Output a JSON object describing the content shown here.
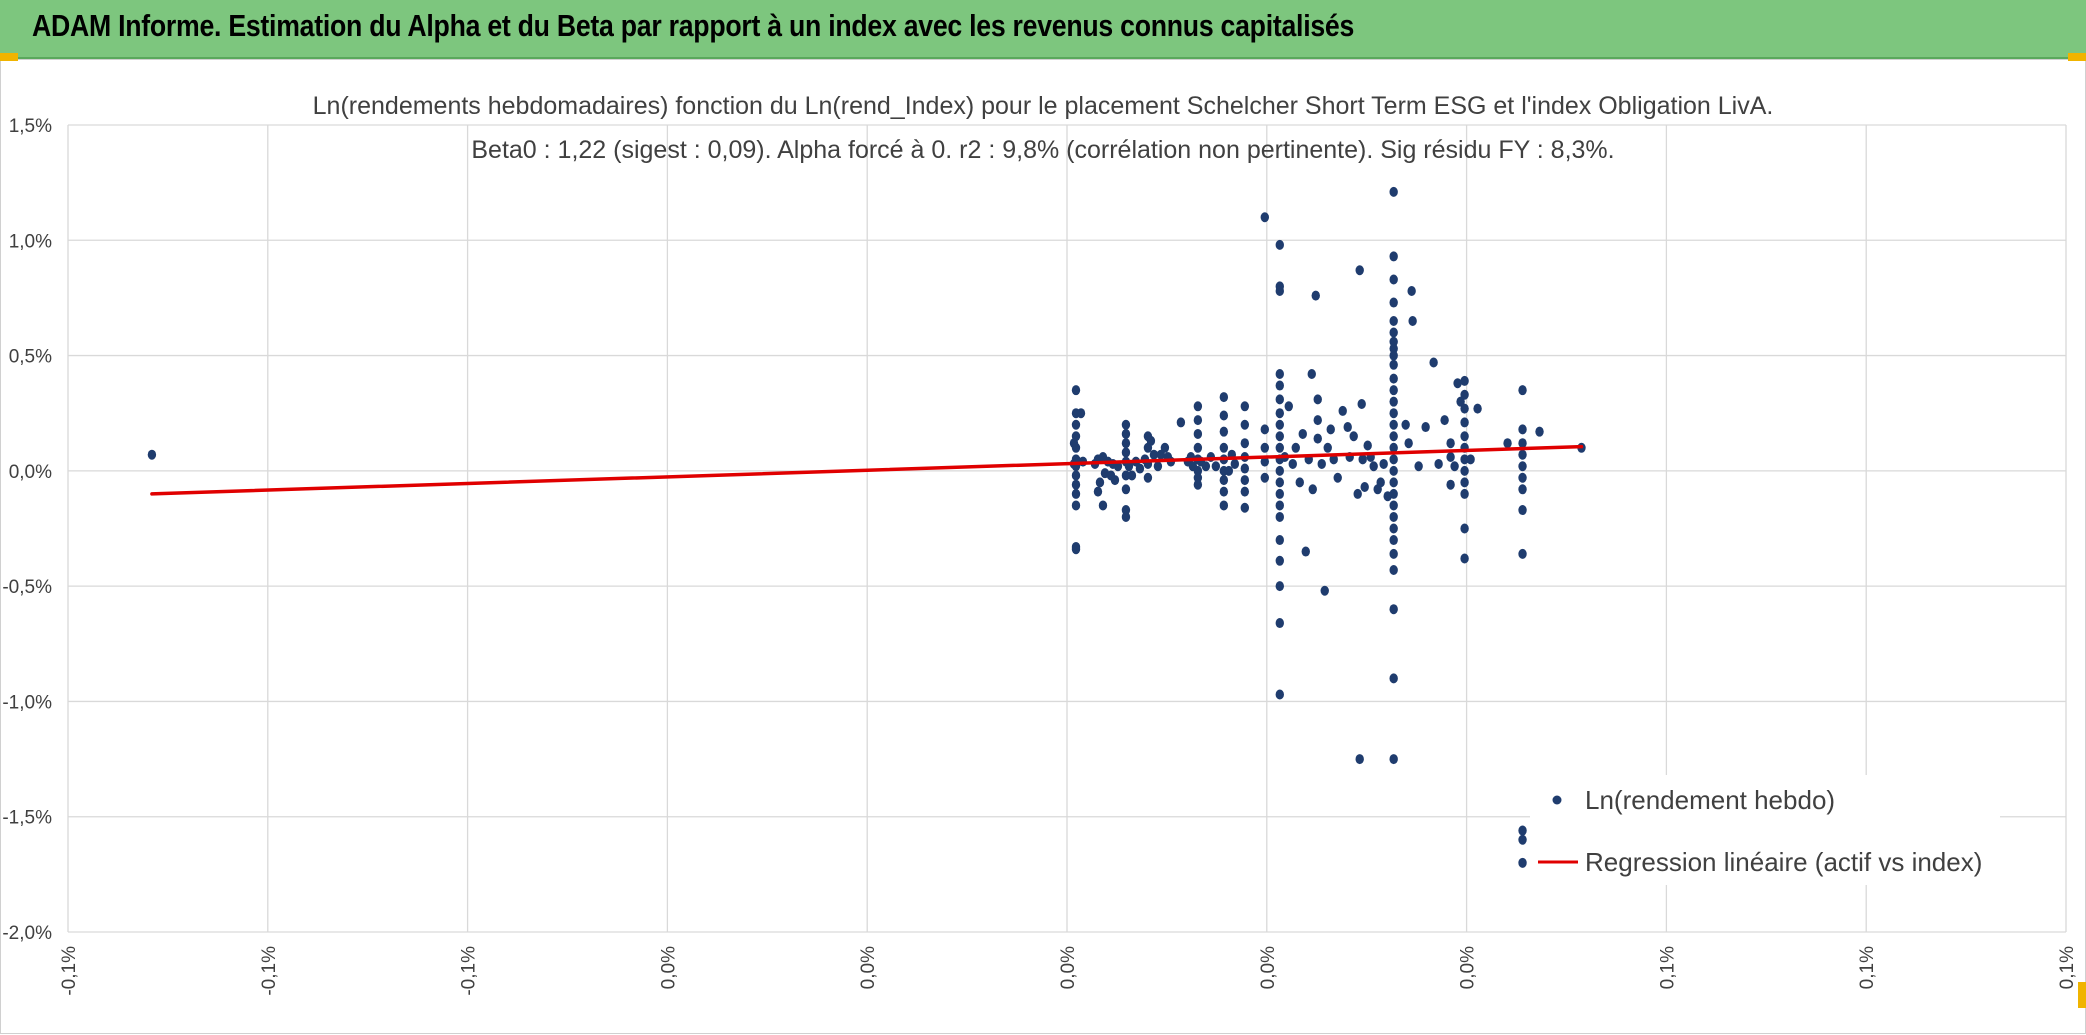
{
  "header": {
    "title": "ADAM Informe. Estimation du Alpha et du Beta par rapport à un index avec les revenus connus capitalisés"
  },
  "colors": {
    "banner": "#7dc67e",
    "points": "#1f3c6e",
    "regression": "#e00000",
    "grid": "#d9d9d9",
    "corner_accent": "#f0b400"
  },
  "chart_data": {
    "type": "scatter",
    "title_line1": "Ln(rendements hebdomadaires) fonction du Ln(rend_Index) pour le placement Schelcher Short Term ESG  et l'index Obligation LivA.",
    "title_line2": "Beta0 : 1,22 (sigest : 0,09). Alpha forcé à 0. r2 : 9,8% (corrélation non pertinente). Sig résidu FY : 8,3%.",
    "xlim": [
      -0.1,
      0.1
    ],
    "ylim": [
      -2.0,
      1.5
    ],
    "grid": true,
    "legend_position": "bottom-right",
    "x_tick_labels": [
      "-0,1%",
      "-0,1%",
      "-0,1%",
      "0,0%",
      "0,0%",
      "0,0%",
      "0,0%",
      "0,0%",
      "0,1%",
      "0,1%",
      "0,1%"
    ],
    "y_tick_labels": [
      "1,5%",
      "1,0%",
      "0,5%",
      "0,0%",
      "-0,5%",
      "-1,0%",
      "-1,5%",
      "-2,0%"
    ],
    "series": [
      {
        "name": "Ln(rendement hebdo)",
        "kind": "scatter",
        "points": [
          [
            -0.0916,
            0.07
          ],
          [
            0.0009,
            0.35
          ],
          [
            0.0009,
            0.25
          ],
          [
            0.0009,
            0.2
          ],
          [
            0.0009,
            0.15
          ],
          [
            0.0009,
            0.1
          ],
          [
            0.0009,
            0.05
          ],
          [
            0.0009,
            0.02
          ],
          [
            0.0009,
            -0.02
          ],
          [
            0.0009,
            -0.06
          ],
          [
            0.0009,
            -0.1
          ],
          [
            0.0009,
            -0.15
          ],
          [
            0.0009,
            -0.33
          ],
          [
            0.0009,
            -0.34
          ],
          [
            0.0007,
            0.12
          ],
          [
            0.0007,
            0.03
          ],
          [
            0.0011,
            0.04
          ],
          [
            0.0014,
            0.25
          ],
          [
            0.0016,
            0.04
          ],
          [
            0.0028,
            0.03
          ],
          [
            0.0031,
            0.05
          ],
          [
            0.0033,
            -0.05
          ],
          [
            0.0036,
            0.06
          ],
          [
            0.0038,
            -0.01
          ],
          [
            0.0041,
            0.04
          ],
          [
            0.0044,
            -0.02
          ],
          [
            0.0046,
            0.03
          ],
          [
            0.0048,
            -0.04
          ],
          [
            0.0036,
            -0.15
          ],
          [
            0.0031,
            -0.09
          ],
          [
            0.0051,
            0.02
          ],
          [
            0.0059,
            0.2
          ],
          [
            0.0059,
            0.16
          ],
          [
            0.0059,
            0.12
          ],
          [
            0.0059,
            0.08
          ],
          [
            0.0059,
            0.04
          ],
          [
            0.0059,
            -0.02
          ],
          [
            0.0059,
            -0.08
          ],
          [
            0.0059,
            -0.17
          ],
          [
            0.0059,
            -0.2
          ],
          [
            0.0062,
            0.02
          ],
          [
            0.0065,
            -0.02
          ],
          [
            0.0069,
            0.04
          ],
          [
            0.0073,
            0.01
          ],
          [
            0.0078,
            0.05
          ],
          [
            0.0081,
            0.15
          ],
          [
            0.0081,
            0.1
          ],
          [
            0.0081,
            0.03
          ],
          [
            0.0081,
            -0.03
          ],
          [
            0.0084,
            0.13
          ],
          [
            0.0087,
            0.07
          ],
          [
            0.0091,
            0.02
          ],
          [
            0.0094,
            0.07
          ],
          [
            0.0098,
            0.1
          ],
          [
            0.0101,
            0.06
          ],
          [
            0.0104,
            0.04
          ],
          [
            0.0114,
            0.21
          ],
          [
            0.0121,
            0.04
          ],
          [
            0.0124,
            0.06
          ],
          [
            0.0126,
            0.02
          ],
          [
            0.0131,
            0.28
          ],
          [
            0.0131,
            0.22
          ],
          [
            0.0131,
            0.16
          ],
          [
            0.0131,
            0.1
          ],
          [
            0.0131,
            0.05
          ],
          [
            0.0131,
            0.0
          ],
          [
            0.0131,
            -0.03
          ],
          [
            0.0131,
            -0.06
          ],
          [
            0.0134,
            0.04
          ],
          [
            0.0139,
            0.02
          ],
          [
            0.0144,
            0.06
          ],
          [
            0.0149,
            0.02
          ],
          [
            0.0157,
            0.32
          ],
          [
            0.0157,
            0.24
          ],
          [
            0.0157,
            0.17
          ],
          [
            0.0157,
            0.1
          ],
          [
            0.0157,
            0.05
          ],
          [
            0.0157,
            0.0
          ],
          [
            0.0157,
            -0.04
          ],
          [
            0.0157,
            -0.09
          ],
          [
            0.0157,
            -0.15
          ],
          [
            0.0162,
            0.0
          ],
          [
            0.0165,
            0.07
          ],
          [
            0.0168,
            0.03
          ],
          [
            0.0178,
            0.28
          ],
          [
            0.0178,
            0.2
          ],
          [
            0.0178,
            0.12
          ],
          [
            0.0178,
            0.06
          ],
          [
            0.0178,
            0.01
          ],
          [
            0.0178,
            -0.04
          ],
          [
            0.0178,
            -0.09
          ],
          [
            0.0178,
            -0.16
          ],
          [
            0.0198,
            1.1
          ],
          [
            0.0198,
            0.18
          ],
          [
            0.0198,
            0.1
          ],
          [
            0.0198,
            0.04
          ],
          [
            0.0198,
            -0.03
          ],
          [
            0.0213,
            0.98
          ],
          [
            0.0213,
            0.8
          ],
          [
            0.0213,
            0.78
          ],
          [
            0.0213,
            0.42
          ],
          [
            0.0213,
            0.37
          ],
          [
            0.0213,
            0.31
          ],
          [
            0.0213,
            0.25
          ],
          [
            0.0213,
            0.2
          ],
          [
            0.0213,
            0.15
          ],
          [
            0.0213,
            0.1
          ],
          [
            0.0213,
            0.05
          ],
          [
            0.0213,
            0.0
          ],
          [
            0.0213,
            -0.05
          ],
          [
            0.0213,
            -0.1
          ],
          [
            0.0213,
            -0.15
          ],
          [
            0.0213,
            -0.2
          ],
          [
            0.0213,
            -0.3
          ],
          [
            0.0213,
            -0.39
          ],
          [
            0.0213,
            -0.5
          ],
          [
            0.0213,
            -0.66
          ],
          [
            0.0213,
            -0.97
          ],
          [
            0.0218,
            0.06
          ],
          [
            0.0222,
            0.28
          ],
          [
            0.0226,
            0.03
          ],
          [
            0.0229,
            0.1
          ],
          [
            0.0233,
            -0.05
          ],
          [
            0.0236,
            0.16
          ],
          [
            0.0239,
            -0.35
          ],
          [
            0.0242,
            0.05
          ],
          [
            0.0245,
            0.42
          ],
          [
            0.0246,
            -0.08
          ],
          [
            0.0249,
            0.76
          ],
          [
            0.0251,
            0.31
          ],
          [
            0.0251,
            0.22
          ],
          [
            0.0251,
            0.14
          ],
          [
            0.0255,
            0.03
          ],
          [
            0.0258,
            -0.52
          ],
          [
            0.0261,
            0.1
          ],
          [
            0.0264,
            0.18
          ],
          [
            0.0267,
            0.05
          ],
          [
            0.0271,
            -0.03
          ],
          [
            0.0276,
            0.26
          ],
          [
            0.0281,
            0.19
          ],
          [
            0.0283,
            0.06
          ],
          [
            0.0287,
            0.15
          ],
          [
            0.0291,
            -0.1
          ],
          [
            0.0293,
            0.87
          ],
          [
            0.0295,
            0.29
          ],
          [
            0.0296,
            0.05
          ],
          [
            0.0298,
            -0.07
          ],
          [
            0.0301,
            0.11
          ],
          [
            0.0304,
            0.06
          ],
          [
            0.0307,
            0.02
          ],
          [
            0.0311,
            -0.08
          ],
          [
            0.0314,
            -0.05
          ],
          [
            0.0317,
            0.03
          ],
          [
            0.0321,
            -0.11
          ],
          [
            0.0293,
            -1.25
          ],
          [
            0.0327,
            1.21
          ],
          [
            0.0327,
            0.93
          ],
          [
            0.0327,
            0.83
          ],
          [
            0.0327,
            0.73
          ],
          [
            0.0327,
            0.65
          ],
          [
            0.0327,
            0.6
          ],
          [
            0.0327,
            0.56
          ],
          [
            0.0327,
            0.53
          ],
          [
            0.0327,
            0.5
          ],
          [
            0.0327,
            0.46
          ],
          [
            0.0327,
            0.4
          ],
          [
            0.0327,
            0.35
          ],
          [
            0.0327,
            0.3
          ],
          [
            0.0327,
            0.25
          ],
          [
            0.0327,
            0.2
          ],
          [
            0.0327,
            0.15
          ],
          [
            0.0327,
            0.1
          ],
          [
            0.0327,
            0.05
          ],
          [
            0.0327,
            0.0
          ],
          [
            0.0327,
            -0.05
          ],
          [
            0.0327,
            -0.1
          ],
          [
            0.0327,
            -0.15
          ],
          [
            0.0327,
            -0.2
          ],
          [
            0.0327,
            -0.25
          ],
          [
            0.0327,
            -0.3
          ],
          [
            0.0327,
            -0.36
          ],
          [
            0.0327,
            -0.43
          ],
          [
            0.0327,
            -0.6
          ],
          [
            0.0327,
            -0.9
          ],
          [
            0.0327,
            -1.25
          ],
          [
            0.0339,
            0.2
          ],
          [
            0.0342,
            0.12
          ],
          [
            0.0345,
            0.78
          ],
          [
            0.0346,
            0.65
          ],
          [
            0.0352,
            0.02
          ],
          [
            0.0359,
            0.19
          ],
          [
            0.0367,
            0.47
          ],
          [
            0.0372,
            0.03
          ],
          [
            0.0378,
            0.22
          ],
          [
            0.0384,
            0.12
          ],
          [
            0.0384,
            0.06
          ],
          [
            0.0384,
            -0.06
          ],
          [
            0.0388,
            0.02
          ],
          [
            0.0391,
            0.38
          ],
          [
            0.0394,
            0.3
          ],
          [
            0.0398,
            0.39
          ],
          [
            0.0398,
            0.33
          ],
          [
            0.0398,
            0.27
          ],
          [
            0.0398,
            0.21
          ],
          [
            0.0398,
            0.15
          ],
          [
            0.0398,
            0.1
          ],
          [
            0.0398,
            0.05
          ],
          [
            0.0398,
            0.0
          ],
          [
            0.0398,
            -0.05
          ],
          [
            0.0398,
            -0.1
          ],
          [
            0.0398,
            -0.25
          ],
          [
            0.0398,
            -0.38
          ],
          [
            0.0404,
            0.05
          ],
          [
            0.0411,
            0.27
          ],
          [
            0.0441,
            0.12
          ],
          [
            0.0456,
            0.35
          ],
          [
            0.0456,
            0.18
          ],
          [
            0.0456,
            0.12
          ],
          [
            0.0456,
            0.07
          ],
          [
            0.0456,
            0.02
          ],
          [
            0.0456,
            -0.03
          ],
          [
            0.0456,
            -0.08
          ],
          [
            0.0456,
            -0.17
          ],
          [
            0.0456,
            -0.36
          ],
          [
            0.0456,
            -1.56
          ],
          [
            0.0456,
            -1.6
          ],
          [
            0.0456,
            -1.7
          ],
          [
            0.0473,
            0.17
          ],
          [
            0.0515,
            0.1
          ]
        ]
      },
      {
        "name": "Regression linéaire (actif vs index)",
        "kind": "line",
        "points": [
          [
            -0.0916,
            -0.1
          ],
          [
            0.0515,
            0.105
          ]
        ]
      }
    ]
  }
}
